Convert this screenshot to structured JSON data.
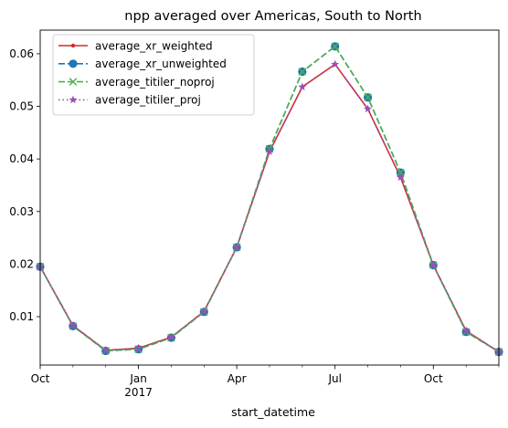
{
  "chart_data": {
    "type": "line",
    "title": "npp averaged over Americas, South to North",
    "xlabel": "start_datetime",
    "ylabel": "",
    "x": [
      "2016-10",
      "2016-11",
      "2016-12",
      "2017-01",
      "2017-02",
      "2017-03",
      "2017-04",
      "2017-05",
      "2017-06",
      "2017-07",
      "2017-08",
      "2017-09",
      "2017-10",
      "2017-11",
      "2017-12"
    ],
    "xlim": [
      "2016-10",
      "2017-12"
    ],
    "ylim": [
      0.0008,
      0.0645
    ],
    "y_ticks": [
      "0.01",
      "0.02",
      "0.03",
      "0.04",
      "0.05",
      "0.06"
    ],
    "x_ticks": [
      {
        "x": "2016-10",
        "label": "Oct",
        "sub": ""
      },
      {
        "x": "2017-01",
        "label": "Jan",
        "sub": "2017"
      },
      {
        "x": "2017-04",
        "label": "Apr",
        "sub": ""
      },
      {
        "x": "2017-07",
        "label": "Jul",
        "sub": ""
      },
      {
        "x": "2017-10",
        "label": "Oct",
        "sub": ""
      }
    ],
    "grid": false,
    "legend_position": "top-left",
    "series": [
      {
        "name": "average_xr_weighted",
        "color": "#d62728",
        "dash": "solid",
        "marker": "dot",
        "values": [
          0.0195,
          0.0083,
          0.0036,
          0.004,
          0.0061,
          0.011,
          0.0232,
          0.0414,
          0.0537,
          0.058,
          0.0495,
          0.0365,
          0.0198,
          0.0073,
          0.0033
        ]
      },
      {
        "name": "average_xr_unweighted",
        "color": "#1f77b4",
        "dash": "dashed",
        "marker": "circle",
        "values": [
          0.0195,
          0.0082,
          0.0035,
          0.0038,
          0.006,
          0.0109,
          0.0232,
          0.0419,
          0.0566,
          0.0614,
          0.0517,
          0.0374,
          0.0198,
          0.0071,
          0.0033
        ]
      },
      {
        "name": "average_titiler_noproj",
        "color": "#4caf50",
        "dash": "dashed",
        "marker": "x",
        "values": [
          0.0195,
          0.0082,
          0.0035,
          0.0038,
          0.006,
          0.0109,
          0.0232,
          0.0419,
          0.0566,
          0.0614,
          0.0517,
          0.0374,
          0.0198,
          0.0071,
          0.0033
        ]
      },
      {
        "name": "average_titiler_proj",
        "color": "#9b4fb5",
        "dash": "dotted",
        "marker": "star",
        "values": [
          0.0195,
          0.0083,
          0.0036,
          0.004,
          0.0061,
          0.011,
          0.0232,
          0.0414,
          0.0537,
          0.058,
          0.0495,
          0.0365,
          0.0198,
          0.0073,
          0.0033
        ]
      }
    ]
  }
}
